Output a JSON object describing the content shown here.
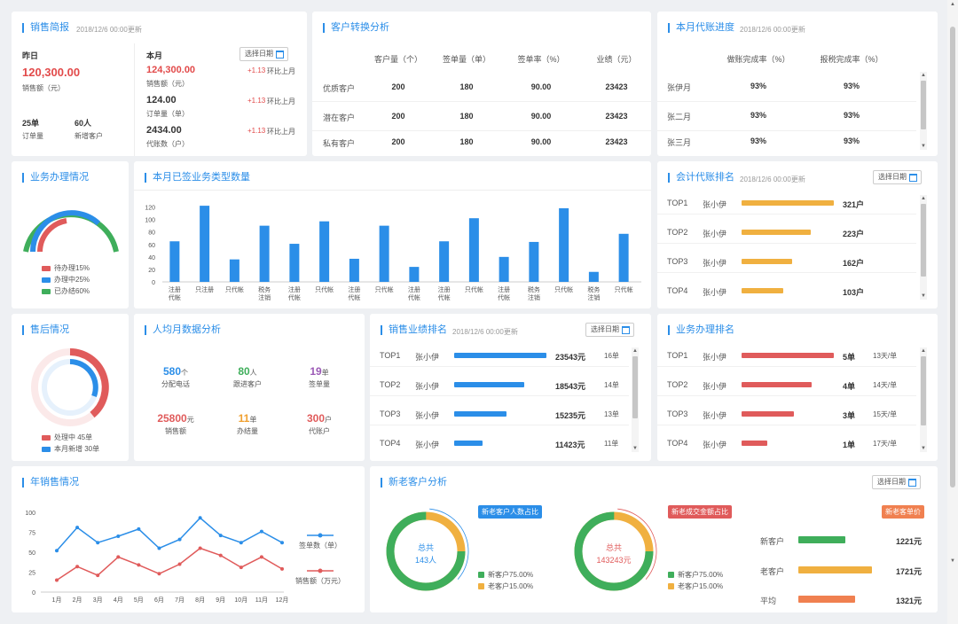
{
  "sales_brief": {
    "title": "销售简报",
    "updated": "2018/12/6 00:00更新",
    "yesterday_label": "昨日",
    "yesterday_amount": "120,300.00",
    "yesterday_amount_label": "销售额（元）",
    "orders_value": "25单",
    "orders_label": "订单量",
    "new_customers_value": "60人",
    "new_customers_label": "新增客户",
    "month_label": "本月",
    "date_btn": "选择日期",
    "month_items": [
      {
        "value": "124,300.00",
        "label": "销售额（元）",
        "change": "+1.13",
        "cmp": "环比上月",
        "color": "#e24a4a"
      },
      {
        "value": "124.00",
        "label": "订单量（单）",
        "change": "+1.13",
        "cmp": "环比上月",
        "color": "#333333"
      },
      {
        "value": "2434.00",
        "label": "代账数（户）",
        "change": "+1.13",
        "cmp": "环比上月",
        "color": "#333333"
      }
    ]
  },
  "conversion": {
    "title": "客户转换分析",
    "headers": [
      "客户量（个）",
      "签单量（单）",
      "签单率（%）",
      "业绩（元）"
    ],
    "rows": [
      {
        "name": "优质客户",
        "values": [
          "200",
          "180",
          "90.00",
          "23423"
        ]
      },
      {
        "name": "潜在客户",
        "values": [
          "200",
          "180",
          "90.00",
          "23423"
        ]
      },
      {
        "name": "私有客户",
        "values": [
          "200",
          "180",
          "90.00",
          "23423"
        ]
      }
    ]
  },
  "bookkeeping_progress": {
    "title": "本月代账进度",
    "updated": "2018/12/6 00:00更新",
    "headers": [
      "做账完成率（%）",
      "报税完成率（%）"
    ],
    "rows": [
      {
        "name": "张伊月",
        "values": [
          "93%",
          "93%"
        ]
      },
      {
        "name": "张二月",
        "values": [
          "93%",
          "93%"
        ]
      },
      {
        "name": "张三月",
        "values": [
          "93%",
          "93%"
        ]
      }
    ]
  },
  "business_status": {
    "title": "业务办理情况",
    "legend": [
      {
        "label": "待办理15%",
        "color": "#e05b5b"
      },
      {
        "label": "办理中25%",
        "color": "#2b8ee8"
      },
      {
        "label": "已办结60%",
        "color": "#3fae5b"
      }
    ]
  },
  "signed_types": {
    "title": "本月已签业务类型数量",
    "chart_data": {
      "type": "bar",
      "categories": [
        "注册代帐",
        "只注册",
        "只代帐",
        "税务注销",
        "注册代帐",
        "只代帐",
        "注册代帐",
        "只代帐",
        "注册代帐",
        "注册代帐",
        "只代帐",
        "注册代帐",
        "税务注销",
        "只代帐",
        "税务注销",
        "只代帐"
      ],
      "values": [
        65,
        122,
        36,
        90,
        61,
        97,
        37,
        90,
        24,
        65,
        102,
        40,
        64,
        118,
        16,
        77
      ],
      "yticks": [
        0,
        20,
        40,
        60,
        80,
        100,
        120
      ],
      "ylim": [
        0,
        125
      ],
      "color": "#2b8ee8"
    }
  },
  "accounting_rank": {
    "title": "会计代账排名",
    "updated": "2018/12/6 00:00更新",
    "date_btn": "选择日期",
    "rows": [
      {
        "rank": "TOP1",
        "name": "张小伊",
        "value": "321户",
        "level": 1.0
      },
      {
        "rank": "TOP2",
        "name": "张小伊",
        "value": "223户",
        "level": 0.75
      },
      {
        "rank": "TOP3",
        "name": "张小伊",
        "value": "162户",
        "level": 0.55
      },
      {
        "rank": "TOP4",
        "name": "张小伊",
        "value": "103户",
        "level": 0.45
      }
    ],
    "bar_color": "#f0b040"
  },
  "after_sales": {
    "title": "售后情况",
    "legend": [
      {
        "label": "处理中 45单",
        "color": "#e05b5b"
      },
      {
        "label": "本月新增 30单",
        "color": "#2b8ee8"
      }
    ]
  },
  "per_capita": {
    "title": "人均月数据分析",
    "items": [
      {
        "value": "580",
        "unit": "个",
        "label": "分配电话",
        "color": "#2b8ee8"
      },
      {
        "value": "80",
        "unit": "人",
        "label": "跟进客户",
        "color": "#3fae5b"
      },
      {
        "value": "19",
        "unit": "单",
        "label": "签单量",
        "color": "#9b59b6"
      },
      {
        "value": "25800",
        "unit": "元",
        "label": "销售额",
        "color": "#e05b5b"
      },
      {
        "value": "11",
        "unit": "单",
        "label": "办结量",
        "color": "#f0a030"
      },
      {
        "value": "300",
        "unit": "户",
        "label": "代账户",
        "color": "#e05b5b"
      }
    ]
  },
  "sales_rank": {
    "title": "销售业绩排名",
    "updated": "2018/12/6 00:00更新",
    "date_btn": "选择日期",
    "rows": [
      {
        "rank": "TOP1",
        "name": "张小伊",
        "value": "23543元",
        "count": "16单",
        "level": 1.0
      },
      {
        "rank": "TOP2",
        "name": "张小伊",
        "value": "18543元",
        "count": "14单",
        "level": 0.76
      },
      {
        "rank": "TOP3",
        "name": "张小伊",
        "value": "15235元",
        "count": "13单",
        "level": 0.57
      },
      {
        "rank": "TOP4",
        "name": "张小伊",
        "value": "11423元",
        "count": "11单",
        "level": 0.31
      }
    ],
    "bar_color": "#2b8ee8"
  },
  "handling_rank": {
    "title": "业务办理排名",
    "rows": [
      {
        "rank": "TOP1",
        "name": "张小伊",
        "value": "5单",
        "time": "13天/单",
        "level": 1.0
      },
      {
        "rank": "TOP2",
        "name": "张小伊",
        "value": "4单",
        "time": "14天/单",
        "level": 0.76
      },
      {
        "rank": "TOP3",
        "name": "张小伊",
        "value": "3单",
        "time": "15天/单",
        "level": 0.57
      },
      {
        "rank": "TOP4",
        "name": "张小伊",
        "value": "1单",
        "time": "17天/单",
        "level": 0.28
      }
    ],
    "bar_color": "#e05b5b"
  },
  "annual_sales": {
    "title": "年销售情况",
    "chart_data": {
      "type": "line",
      "categories": [
        "1月",
        "2月",
        "3月",
        "4月",
        "5月",
        "6月",
        "7月",
        "8月",
        "9月",
        "10月",
        "11月",
        "12月"
      ],
      "yticks": [
        0,
        25,
        50,
        75,
        100
      ],
      "ylim": [
        0,
        100
      ],
      "series": [
        {
          "name": "签单数（单）",
          "color": "#2b8ee8",
          "values": [
            52,
            81,
            62,
            70,
            79,
            55,
            66,
            93,
            71,
            62,
            76,
            62
          ]
        },
        {
          "name": "销售额（万元）",
          "color": "#e05b5b",
          "values": [
            15,
            32,
            21,
            44,
            34,
            23,
            35,
            55,
            46,
            31,
            44,
            29
          ]
        }
      ]
    }
  },
  "customer_analysis": {
    "title": "新老客户分析",
    "date_btn": "选择日期",
    "donut1": {
      "badge": "新老客户人数占比",
      "badge_color": "#2b8ee8",
      "center_label": "总共",
      "center_value": "143人",
      "center_color": "#2b8ee8",
      "legend": [
        {
          "label": "新客户75.00%",
          "color": "#3fae5b"
        },
        {
          "label": "老客户15.00%",
          "color": "#f0b040"
        }
      ],
      "fraction": 0.75
    },
    "donut2": {
      "badge": "新老成交金额占比",
      "badge_color": "#e05b5b",
      "center_label": "总共",
      "center_value": "143243元",
      "center_color": "#e05b5b",
      "legend": [
        {
          "label": "新客户75.00%",
          "color": "#3fae5b"
        },
        {
          "label": "老客户15.00%",
          "color": "#f0b040"
        }
      ],
      "fraction": 0.75
    },
    "unit_price": {
      "badge": "新老客单价",
      "badge_color": "#f08050",
      "rows": [
        {
          "name": "新客户",
          "value": "1221元",
          "color": "#3fae5b",
          "level": 0.46
        },
        {
          "name": "老客户",
          "value": "1721元",
          "color": "#f0b040",
          "level": 0.72
        },
        {
          "name": "平均",
          "value": "1321元",
          "color": "#f08050",
          "level": 0.56
        }
      ]
    }
  }
}
